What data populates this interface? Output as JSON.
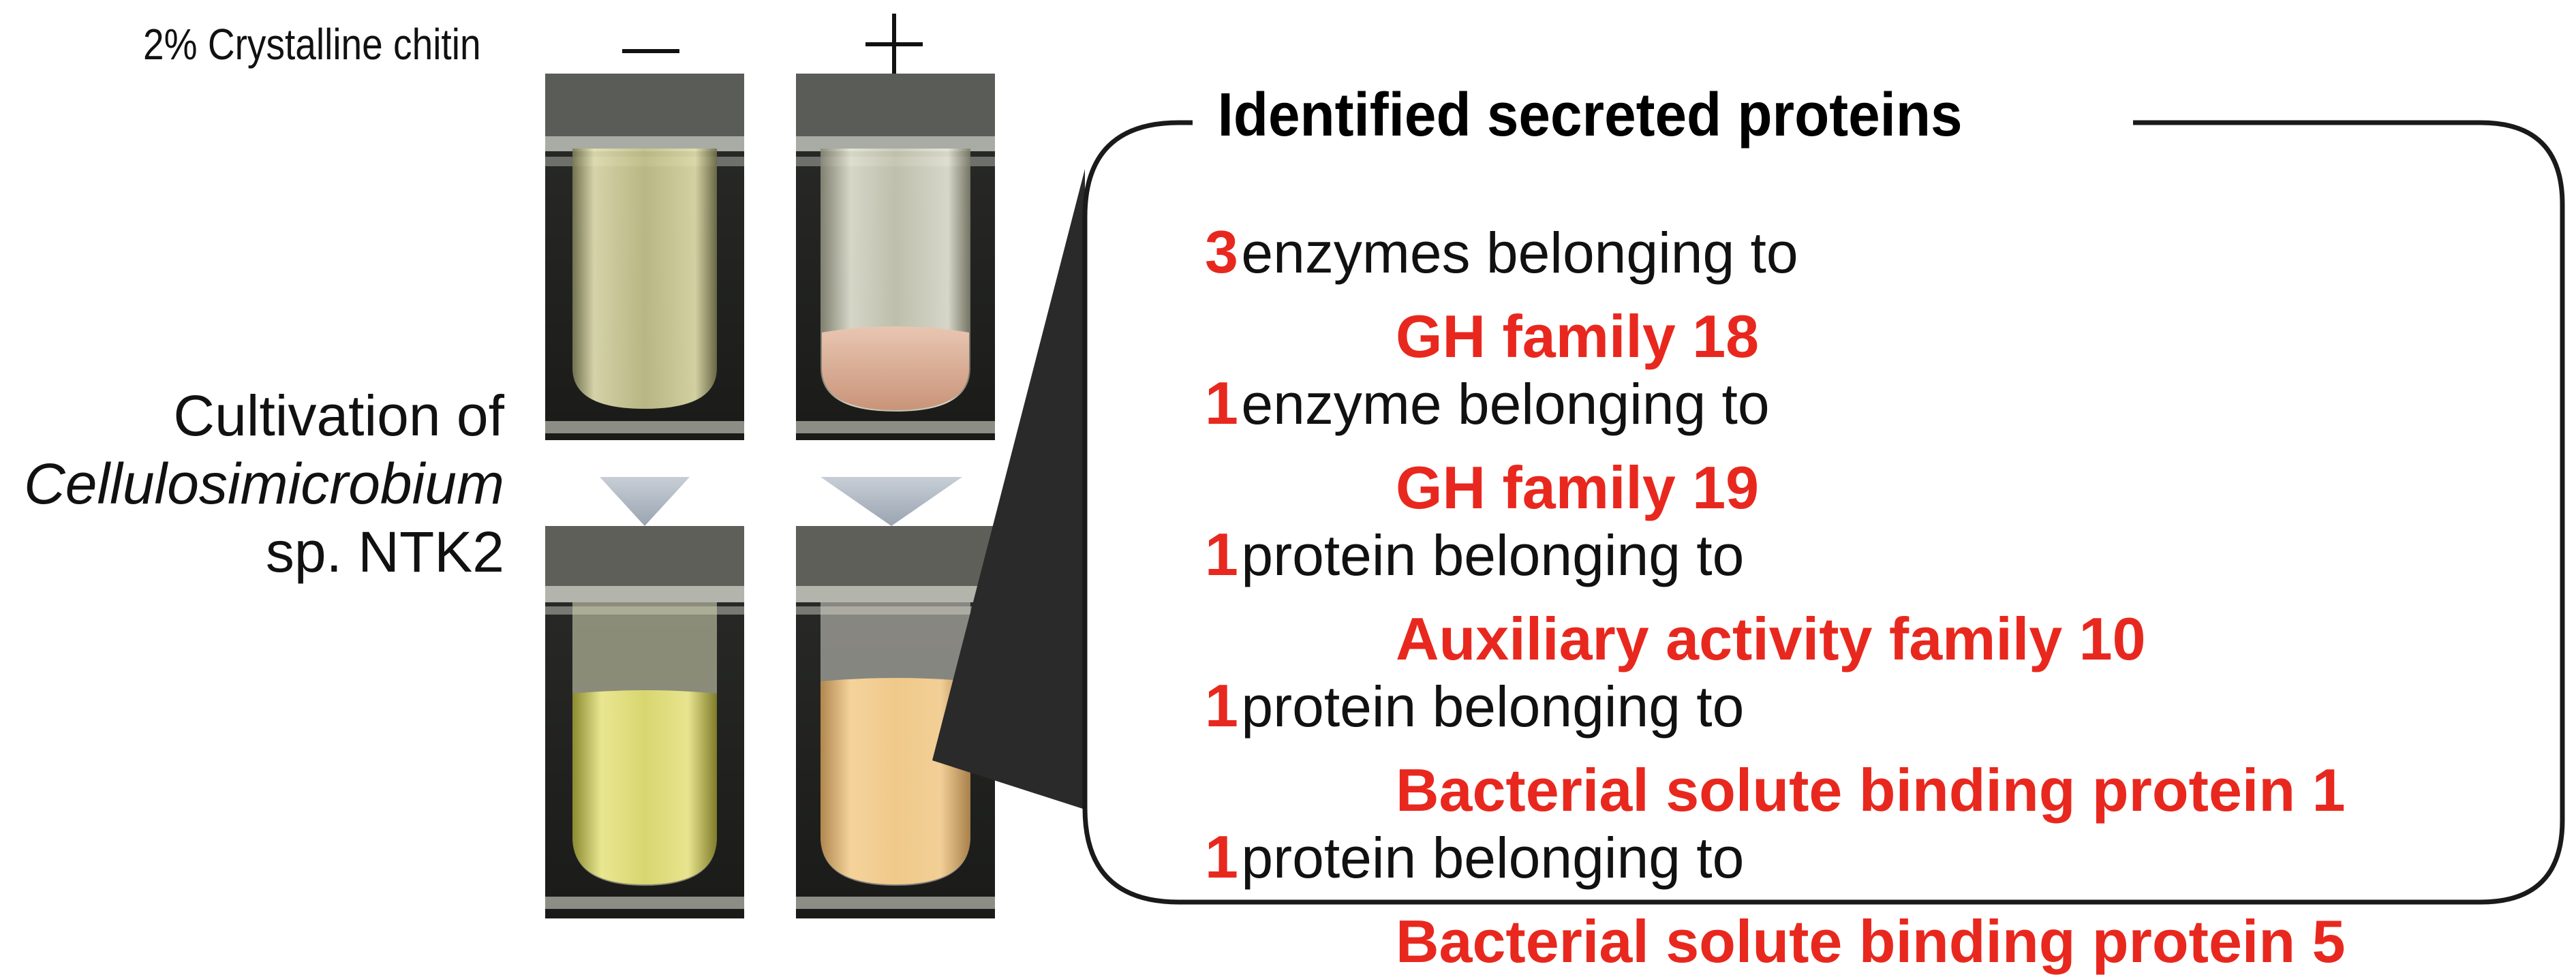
{
  "condition_label": "2% Crystalline chitin",
  "condition_minus": "−",
  "condition_plus": "+",
  "cultivation": {
    "line1": "Cultivation of",
    "line2": "Cellulosimicrobium",
    "line3": "sp. NTK2"
  },
  "panel": {
    "title": "Identified secreted proteins",
    "items": [
      {
        "count": "3",
        "text": "enzymes belonging to",
        "family": "GH family 18"
      },
      {
        "count": "1",
        "text": "enzyme belonging to",
        "family": "GH family 19"
      },
      {
        "count": "1",
        "text": "protein belonging to",
        "family": "Auxiliary activity family 10"
      },
      {
        "count": "1",
        "text": "protein belonging to",
        "family": "Bacterial solute binding protein 1"
      },
      {
        "count": "1",
        "text": "protein belonging to",
        "family": "Bacterial solute binding protein 5"
      }
    ]
  },
  "colors": {
    "accent_red": "#e8281e",
    "arrow_gray": "#b8c0c8"
  }
}
